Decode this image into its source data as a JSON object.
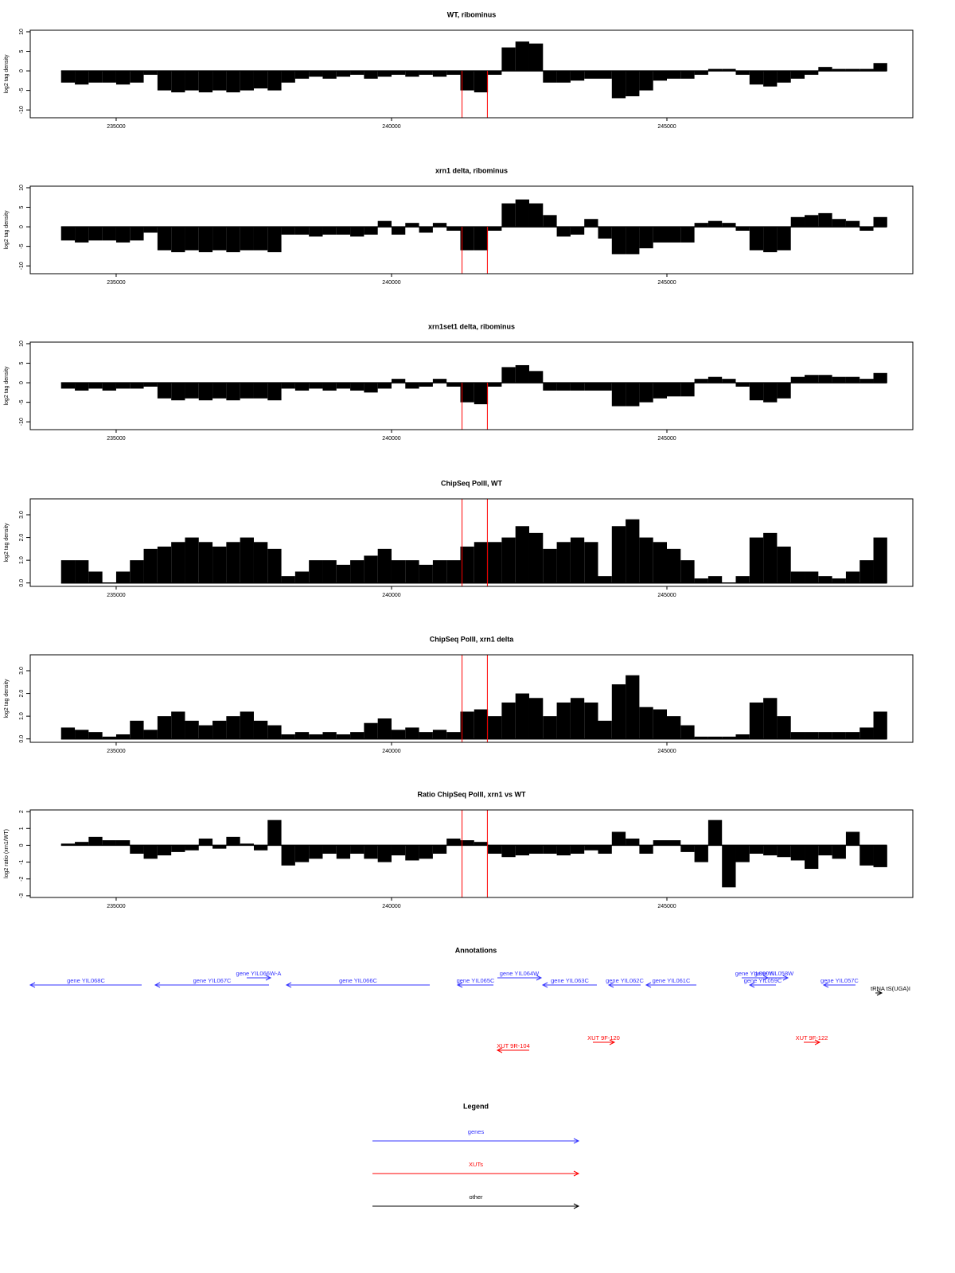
{
  "chart_data": [
    {
      "type": "bar",
      "title": "WT, ribominus",
      "ylabel": "log2 tag density",
      "color": "#000000",
      "x": [
        234000,
        234250,
        234500,
        234750,
        235000,
        235250,
        235500,
        235750,
        236000,
        236250,
        236500,
        236750,
        237000,
        237250,
        237500,
        237750,
        238000,
        238250,
        238500,
        238750,
        239000,
        239250,
        239500,
        239750,
        240000,
        240250,
        240500,
        240750,
        241000,
        241250,
        241500,
        241750,
        242000,
        242250,
        242500,
        242750,
        243000,
        243250,
        243500,
        243750,
        244000,
        244250,
        244500,
        244750,
        245000,
        245250,
        245500,
        245750,
        246000,
        246250,
        246500,
        246750,
        247000,
        247250,
        247500,
        247750,
        248000,
        248250,
        248500,
        248750
      ],
      "values": [
        -3,
        -3.5,
        -3,
        -3,
        -3.5,
        -3,
        -1,
        -5,
        -5.5,
        -5,
        -5.5,
        -5,
        -5.5,
        -5,
        -4.5,
        -5,
        -3,
        -2,
        -1.5,
        -2,
        -1.5,
        -1,
        -2,
        -1.5,
        -1,
        -1.5,
        -1,
        -1.5,
        -1,
        -5,
        -5.5,
        -1,
        6,
        7.5,
        7,
        -3,
        -3,
        -2.5,
        -2,
        -2,
        -7,
        -6.5,
        -5,
        -2.5,
        -2,
        -2,
        -1,
        0.5,
        0.5,
        -1,
        -3.5,
        -4,
        -3,
        -2,
        -1,
        1,
        0.5,
        0.5,
        0.5,
        2
      ],
      "xlim": [
        233440,
        249465
      ],
      "xticks": [
        235000,
        240000,
        245000
      ],
      "ylim": [
        -12,
        10.4
      ],
      "yticks": [
        10,
        5,
        0,
        -5,
        -10
      ]
    },
    {
      "type": "bar",
      "title": "xrn1 delta, ribominus",
      "ylabel": "log2 tag density",
      "color": "#000000",
      "x": [
        234000,
        234250,
        234500,
        234750,
        235000,
        235250,
        235500,
        235750,
        236000,
        236250,
        236500,
        236750,
        237000,
        237250,
        237500,
        237750,
        238000,
        238250,
        238500,
        238750,
        239000,
        239250,
        239500,
        239750,
        240000,
        240250,
        240500,
        240750,
        241000,
        241250,
        241500,
        241750,
        242000,
        242250,
        242500,
        242750,
        243000,
        243250,
        243500,
        243750,
        244000,
        244250,
        244500,
        244750,
        245000,
        245250,
        245500,
        245750,
        246000,
        246250,
        246500,
        246750,
        247000,
        247250,
        247500,
        247750,
        248000,
        248250,
        248500,
        248750
      ],
      "values": [
        -3.5,
        -4,
        -3.5,
        -3.5,
        -4,
        -3.5,
        -1.5,
        -6,
        -6.5,
        -6,
        -6.5,
        -6,
        -6.5,
        -6,
        -6,
        -6.5,
        -2,
        -2,
        -2.5,
        -2,
        -2,
        -2.5,
        -2,
        1.5,
        -2,
        1,
        -1.5,
        1,
        -1,
        -6,
        -6,
        -1,
        6,
        7,
        6,
        3,
        -2.5,
        -2,
        2,
        -3,
        -7,
        -7,
        -5.5,
        -4,
        -4,
        -4,
        1,
        1.5,
        1,
        -1,
        -6,
        -6.5,
        -6,
        2.5,
        3,
        3.5,
        2,
        1.5,
        -1,
        2.5
      ],
      "xlim": [
        233440,
        249465
      ],
      "xticks": [
        235000,
        240000,
        245000
      ],
      "ylim": [
        -12,
        10.4
      ],
      "yticks": [
        10,
        5,
        0,
        -5,
        -10
      ]
    },
    {
      "type": "bar",
      "title": "xrn1set1 delta, ribominus",
      "ylabel": "log2 tag density",
      "color": "#000000",
      "x": [
        234000,
        234250,
        234500,
        234750,
        235000,
        235250,
        235500,
        235750,
        236000,
        236250,
        236500,
        236750,
        237000,
        237250,
        237500,
        237750,
        238000,
        238250,
        238500,
        238750,
        239000,
        239250,
        239500,
        239750,
        240000,
        240250,
        240500,
        240750,
        241000,
        241250,
        241500,
        241750,
        242000,
        242250,
        242500,
        242750,
        243000,
        243250,
        243500,
        243750,
        244000,
        244250,
        244500,
        244750,
        245000,
        245250,
        245500,
        245750,
        246000,
        246250,
        246500,
        246750,
        247000,
        247250,
        247500,
        247750,
        248000,
        248250,
        248500,
        248750
      ],
      "values": [
        -1.5,
        -2,
        -1.5,
        -2,
        -1.5,
        -1.5,
        -1,
        -4,
        -4.5,
        -4,
        -4.5,
        -4,
        -4.5,
        -4,
        -4,
        -4.5,
        -1.5,
        -2,
        -1.5,
        -2,
        -1.5,
        -2,
        -2.5,
        -1.5,
        1,
        -1.5,
        -1,
        1,
        -1,
        -5,
        -5.5,
        -1,
        4,
        4.5,
        3,
        -2,
        -2,
        -2,
        -2,
        -2,
        -6,
        -6,
        -5,
        -4,
        -3.5,
        -3.5,
        1,
        1.5,
        1,
        -1,
        -4.5,
        -5,
        -4,
        1.5,
        2,
        2,
        1.5,
        1.5,
        1,
        2.5
      ],
      "xlim": [
        233440,
        249465
      ],
      "xticks": [
        235000,
        240000,
        245000
      ],
      "ylim": [
        -12,
        10.4
      ],
      "yticks": [
        10,
        5,
        0,
        -5,
        -10
      ]
    },
    {
      "type": "bar",
      "title": "ChipSeq PolII, WT",
      "ylabel": "log2 tag density",
      "color": "#000000",
      "x": [
        234000,
        234250,
        234500,
        234750,
        235000,
        235250,
        235500,
        235750,
        236000,
        236250,
        236500,
        236750,
        237000,
        237250,
        237500,
        237750,
        238000,
        238250,
        238500,
        238750,
        239000,
        239250,
        239500,
        239750,
        240000,
        240250,
        240500,
        240750,
        241000,
        241250,
        241500,
        241750,
        242000,
        242250,
        242500,
        242750,
        243000,
        243250,
        243500,
        243750,
        244000,
        244250,
        244500,
        244750,
        245000,
        245250,
        245500,
        245750,
        246000,
        246250,
        246500,
        246750,
        247000,
        247250,
        247500,
        247750,
        248000,
        248250,
        248500,
        248750
      ],
      "values": [
        1.0,
        1.0,
        0.5,
        0,
        0.5,
        1.0,
        1.5,
        1.6,
        1.8,
        2.0,
        1.8,
        1.6,
        1.8,
        2.0,
        1.8,
        1.5,
        0.3,
        0.5,
        1.0,
        1.0,
        0.8,
        1.0,
        1.2,
        1.5,
        1.0,
        1.0,
        0.8,
        1.0,
        1.0,
        1.6,
        1.8,
        1.8,
        2.0,
        2.5,
        2.2,
        1.5,
        1.8,
        2.0,
        1.8,
        0.3,
        2.5,
        2.8,
        2.0,
        1.8,
        1.5,
        1.0,
        0.2,
        0.3,
        0,
        0.3,
        2.0,
        2.2,
        1.6,
        0.5,
        0.5,
        0.3,
        0.2,
        0.5,
        1.0,
        2.0
      ],
      "xlim": [
        233440,
        249465
      ],
      "xticks": [
        235000,
        240000,
        245000
      ],
      "ylim": [
        -0.15,
        3.7
      ],
      "yticks": [
        {
          "value": 0,
          "label": "0.0"
        },
        {
          "value": 1,
          "label": "1.0"
        },
        {
          "value": 2,
          "label": "2.0"
        },
        {
          "value": 3,
          "label": "3.0"
        }
      ]
    },
    {
      "type": "bar",
      "title": "ChipSeq PolII, xrn1 delta",
      "ylabel": "log2 tag density",
      "color": "#000000",
      "x": [
        234000,
        234250,
        234500,
        234750,
        235000,
        235250,
        235500,
        235750,
        236000,
        236250,
        236500,
        236750,
        237000,
        237250,
        237500,
        237750,
        238000,
        238250,
        238500,
        238750,
        239000,
        239250,
        239500,
        239750,
        240000,
        240250,
        240500,
        240750,
        241000,
        241250,
        241500,
        241750,
        242000,
        242250,
        242500,
        242750,
        243000,
        243250,
        243500,
        243750,
        244000,
        244250,
        244500,
        244750,
        245000,
        245250,
        245500,
        245750,
        246000,
        246250,
        246500,
        246750,
        247000,
        247250,
        247500,
        247750,
        248000,
        248250,
        248500,
        248750
      ],
      "values": [
        0.5,
        0.4,
        0.3,
        0.1,
        0.2,
        0.8,
        0.4,
        1.0,
        1.2,
        0.8,
        0.6,
        0.8,
        1.0,
        1.2,
        0.8,
        0.6,
        0.2,
        0.3,
        0.2,
        0.3,
        0.2,
        0.3,
        0.7,
        0.9,
        0.4,
        0.5,
        0.3,
        0.4,
        0.3,
        1.2,
        1.3,
        1.0,
        1.6,
        2.0,
        1.8,
        1.0,
        1.6,
        1.8,
        1.6,
        0.8,
        2.4,
        2.8,
        1.4,
        1.3,
        1.0,
        0.6,
        0.1,
        0.1,
        0.1,
        0.2,
        1.6,
        1.8,
        1.0,
        0.3,
        0.3,
        0.3,
        0.3,
        0.3,
        0.5,
        1.2
      ],
      "xlim": [
        233440,
        249465
      ],
      "xticks": [
        235000,
        240000,
        245000
      ],
      "ylim": [
        -0.15,
        3.7
      ],
      "yticks": [
        {
          "value": 0,
          "label": "0.0"
        },
        {
          "value": 1,
          "label": "1.0"
        },
        {
          "value": 2,
          "label": "2.0"
        },
        {
          "value": 3,
          "label": "3.0"
        }
      ]
    },
    {
      "type": "bar",
      "title": "Ratio ChipSeq PolII, xrn1 vs WT",
      "ylabel": "log2 ratio (xrn1/WT)",
      "color": "#000000",
      "x": [
        234000,
        234250,
        234500,
        234750,
        235000,
        235250,
        235500,
        235750,
        236000,
        236250,
        236500,
        236750,
        237000,
        237250,
        237500,
        237750,
        238000,
        238250,
        238500,
        238750,
        239000,
        239250,
        239500,
        239750,
        240000,
        240250,
        240500,
        240750,
        241000,
        241250,
        241500,
        241750,
        242000,
        242250,
        242500,
        242750,
        243000,
        243250,
        243500,
        243750,
        244000,
        244250,
        244500,
        244750,
        245000,
        245250,
        245500,
        245750,
        246000,
        246250,
        246500,
        246750,
        247000,
        247250,
        247500,
        247750,
        248000,
        248250,
        248500,
        248750
      ],
      "values": [
        0.1,
        0.2,
        0.5,
        0.3,
        0.3,
        -0.5,
        -0.8,
        -0.6,
        -0.4,
        -0.3,
        0.4,
        -0.2,
        0.5,
        0.1,
        -0.3,
        1.5,
        -1.2,
        -1.0,
        -0.8,
        -0.5,
        -0.8,
        -0.5,
        -0.8,
        -1.0,
        -0.6,
        -0.9,
        -0.8,
        -0.5,
        0.4,
        0.3,
        0.2,
        -0.5,
        -0.7,
        -0.6,
        -0.5,
        -0.5,
        -0.6,
        -0.5,
        -0.3,
        -0.5,
        0.8,
        0.4,
        -0.5,
        0.3,
        0.3,
        -0.4,
        -1.0,
        1.5,
        -2.5,
        -1.0,
        -0.5,
        -0.6,
        -0.7,
        -0.9,
        -1.4,
        -0.6,
        -0.8,
        0.8,
        -1.2,
        -1.3
      ],
      "xlim": [
        233440,
        249465
      ],
      "xticks": [
        235000,
        240000,
        245000
      ],
      "ylim": [
        -3.1,
        2.1
      ],
      "yticks": [
        2,
        1,
        0,
        -1,
        -2,
        -3
      ]
    }
  ],
  "highlight": {
    "color": "#ff0000",
    "x": [
      241280,
      241740
    ]
  },
  "annotations": {
    "title": "Annotations"
  },
  "legend": {
    "title": "Legend",
    "items": [
      {
        "label": "genes",
        "color": "#3333ff",
        "features": [
          {
            "label": "gene YIL068C",
            "start": 233440,
            "end": 235463,
            "strand": "-"
          },
          {
            "label": "gene YIL067C",
            "start": 235709,
            "end": 237775,
            "strand": "-"
          },
          {
            "label": "gene YIL066W-A",
            "start": 237370,
            "end": 237804,
            "strand": "+"
          },
          {
            "label": "gene YIL066C",
            "start": 238093,
            "end": 240694,
            "strand": "-"
          },
          {
            "label": "gene YIL065C",
            "start": 241200,
            "end": 241850,
            "strand": "-"
          },
          {
            "label": "gene YIL064W",
            "start": 241922,
            "end": 242717,
            "strand": "+"
          },
          {
            "label": "gene YIL063C",
            "start": 242746,
            "end": 243728,
            "strand": "-"
          },
          {
            "label": "gene YIL062C",
            "start": 243945,
            "end": 244523,
            "strand": "-"
          },
          {
            "label": "gene YIL061C",
            "start": 244624,
            "end": 245535,
            "strand": "-"
          },
          {
            "label": "gene YIL060W",
            "start": 246358,
            "end": 246835,
            "strand": "+"
          },
          {
            "label": "gene YIL058W",
            "start": 246691,
            "end": 247196,
            "strand": "+"
          },
          {
            "label": "gene YIL059C",
            "start": 246503,
            "end": 246980,
            "strand": "-"
          },
          {
            "label": "gene YIL057C",
            "start": 247846,
            "end": 248424,
            "strand": "-"
          }
        ]
      },
      {
        "label": "XUTs",
        "color": "#ff0000",
        "features": [
          {
            "label": "XUT 9R-104",
            "start": 241922,
            "end": 242500,
            "strand": "-"
          },
          {
            "label": "XUT 9F-120",
            "start": 243656,
            "end": 244046,
            "strand": "+"
          },
          {
            "label": "XUT 9F-122",
            "start": 247485,
            "end": 247774,
            "strand": "+"
          }
        ]
      },
      {
        "label": "other",
        "color": "#000000",
        "features": [
          {
            "label": "tRNA tS(UGA)I",
            "start": 248786,
            "end": 248901,
            "strand": "+"
          }
        ]
      }
    ]
  }
}
